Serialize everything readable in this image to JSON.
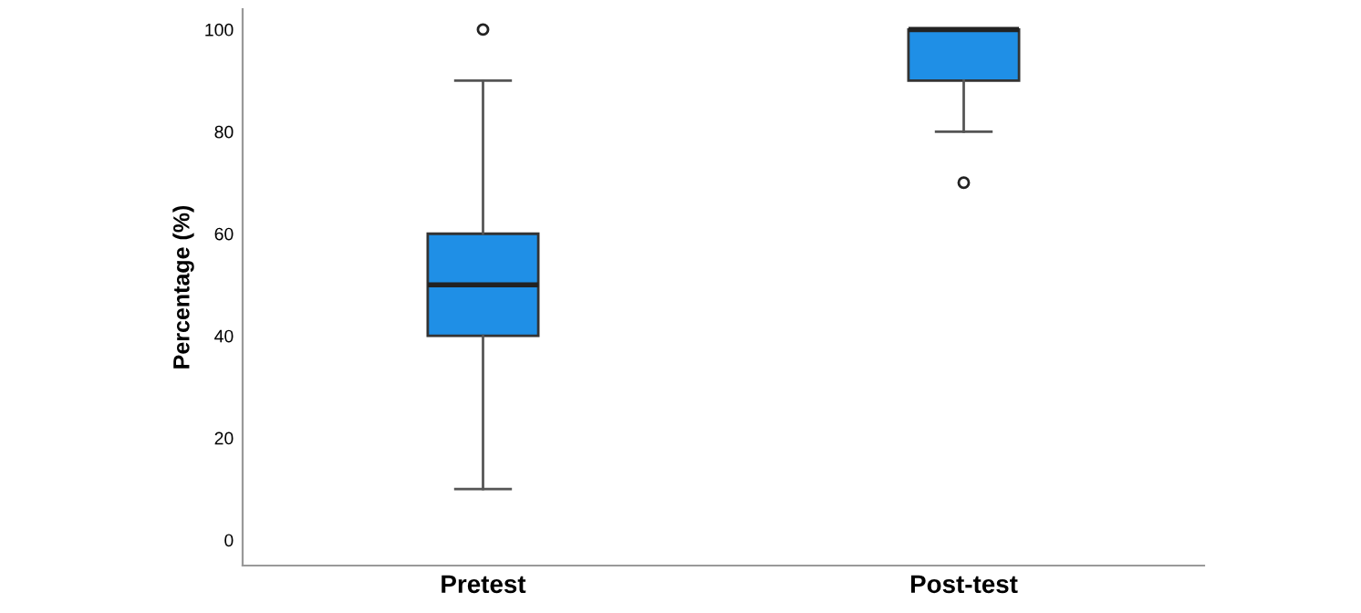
{
  "chart_data": {
    "type": "box",
    "ylabel": "Percentage (%)",
    "categories": [
      "Pretest",
      "Post-test"
    ],
    "boxes": [
      {
        "low": 10,
        "q1": 40,
        "median": 50,
        "q3": 60,
        "high": 90,
        "outliers": [
          100
        ]
      },
      {
        "low": 80,
        "q1": 90,
        "median": 100,
        "q3": 100,
        "high": 100,
        "outliers": [
          70
        ]
      }
    ],
    "color": "#1f8fe6",
    "ylim": [
      -5,
      104
    ],
    "yticks": [
      0,
      20,
      40,
      60,
      80,
      100
    ],
    "grid": false
  }
}
